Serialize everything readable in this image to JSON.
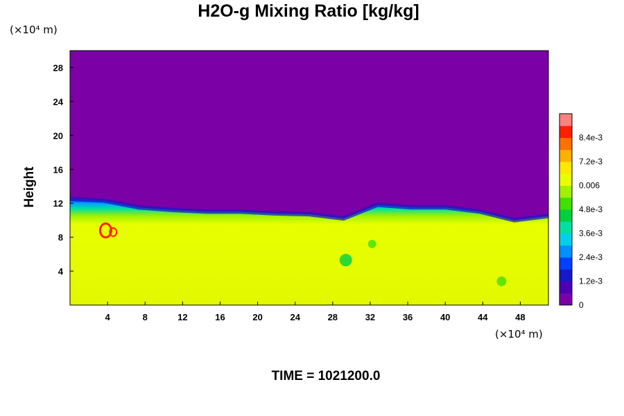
{
  "chart_data": {
    "type": "heatmap",
    "title": "H2O-g Mixing Ratio [kg/kg]",
    "ylabel": "Height",
    "xlabel": "",
    "y_unit_label": "(×10⁴ m)",
    "x_unit_label": "(×10⁴ m)",
    "time_label": "TIME = 1021200.0",
    "xlim": [
      0,
      51
    ],
    "ylim": [
      0,
      30
    ],
    "x_ticks": [
      4,
      8,
      12,
      16,
      20,
      24,
      28,
      32,
      36,
      40,
      44,
      48
    ],
    "x_tick_labels": [
      "4",
      "8",
      "12",
      "16",
      "20",
      "24",
      "28",
      "32",
      "36",
      "40",
      "44",
      "48"
    ],
    "y_ticks": [
      4,
      8,
      12,
      16,
      20,
      24,
      28
    ],
    "y_tick_labels": [
      "4",
      "8",
      "12",
      "16",
      "20",
      "24",
      "28"
    ],
    "colorbar": {
      "min": 0,
      "max": 0.0096,
      "ticks": [
        0,
        0.0012,
        0.0024,
        0.0036,
        0.0048,
        0.006,
        0.0072,
        0.0084
      ],
      "tick_labels": [
        "0",
        "1.2e-3",
        "2.4e-3",
        "3.6e-3",
        "4.8e-3",
        "0.006",
        "7.2e-3",
        "8.4e-3"
      ],
      "colors": [
        "#7b00a6",
        "#4b00b4",
        "#1818c8",
        "#0040ff",
        "#0090ff",
        "#00d0e8",
        "#00e0a0",
        "#00d040",
        "#40e000",
        "#a0f000",
        "#e8ff00",
        "#ffe800",
        "#ffb000",
        "#ff7000",
        "#ff2000",
        "#ff8080"
      ]
    },
    "field_description": {
      "upper_value": 0,
      "lower_value": 0.0063,
      "interface_height": [
        12.5,
        12.3,
        11.5,
        11.2,
        11.0,
        11.0,
        10.8,
        10.7,
        10.2,
        11.8,
        11.5,
        11.5,
        11.0,
        10.0,
        10.5
      ]
    }
  }
}
